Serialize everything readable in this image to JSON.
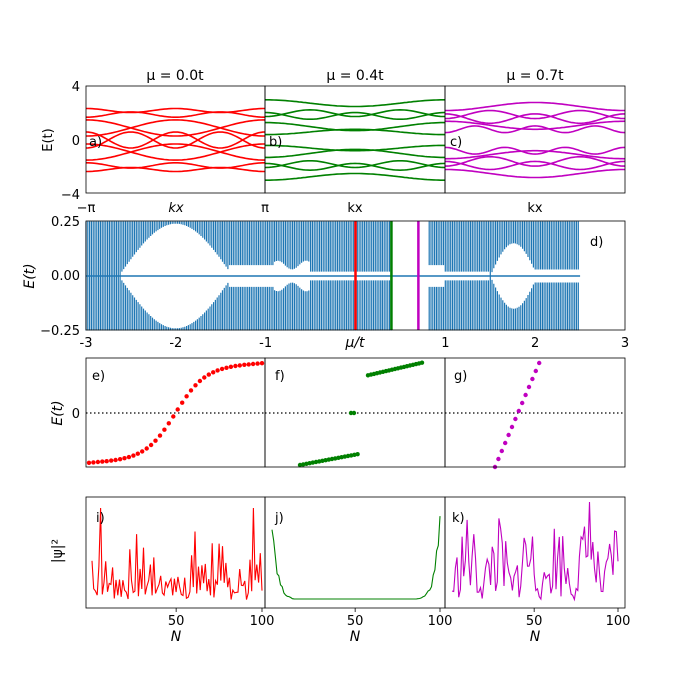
{
  "chart_data": [
    {
      "id": "top-row",
      "type": "line",
      "panels": [
        {
          "label": "a)",
          "title": "μ = 0.0t",
          "xlabel": "kx",
          "color": "#ff0000",
          "mu": 0.0
        },
        {
          "label": "b)",
          "title": "μ = 0.4t",
          "xlabel": "kx",
          "color": "#008000",
          "mu": 0.4
        },
        {
          "label": "c)",
          "title": "μ = 0.7t",
          "xlabel": "kx",
          "color": "#c000c0",
          "mu": 0.7
        }
      ],
      "ylabel": "E(t)",
      "ylim": [
        -4,
        4
      ],
      "yticks": [
        "4",
        "0",
        "−4"
      ],
      "xticks": [
        "−π",
        "π"
      ]
    },
    {
      "id": "spectrum",
      "type": "line",
      "label": "d)",
      "xlabel": "μ/t",
      "ylabel": "E(t)",
      "xlim": [
        -3,
        3
      ],
      "ylim": [
        -0.25,
        0.25
      ],
      "xticks": [
        "-3",
        "-2",
        "-1",
        "0",
        "1",
        "2",
        "3"
      ],
      "yticks": [
        "0.25",
        "0.00",
        "−0.25"
      ],
      "color": "#1f77b4",
      "markers": [
        {
          "mu": 0.0,
          "color": "#ff0000"
        },
        {
          "mu": 0.4,
          "color": "#008000"
        },
        {
          "mu": 0.7,
          "color": "#c000c0"
        }
      ]
    },
    {
      "id": "eigenvalues",
      "type": "scatter",
      "ylabel": "E(t)",
      "panels": [
        {
          "label": "e)",
          "color": "#ff0000",
          "n_points": 40
        },
        {
          "label": "f)",
          "color": "#008000",
          "n_points": 40
        },
        {
          "label": "g)",
          "color": "#c000c0",
          "n_points": 14
        }
      ]
    },
    {
      "id": "wavefunctions",
      "type": "line",
      "ylabel": "|ψ|²",
      "xlabel": "N",
      "xticks": [
        "50",
        "100"
      ],
      "panels": [
        {
          "label": "i)",
          "color": "#ff0000"
        },
        {
          "label": "j)",
          "color": "#008000"
        },
        {
          "label": "k)",
          "color": "#c000c0"
        }
      ]
    }
  ]
}
